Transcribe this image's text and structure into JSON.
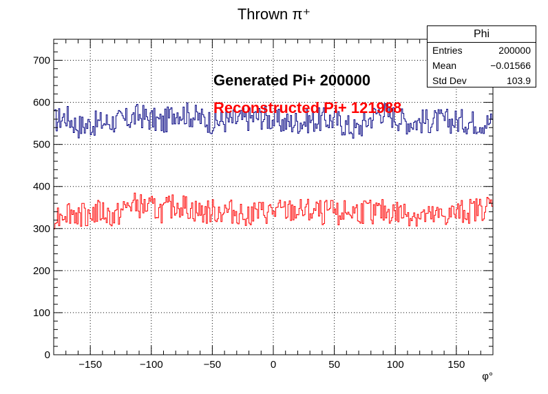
{
  "chart_data": {
    "type": "line",
    "title": "Thrown π⁺",
    "xlabel": "φ°",
    "ylabel": "",
    "xlim": [
      -180,
      180
    ],
    "ylim": [
      0,
      750
    ],
    "x_ticks": [
      -150,
      -100,
      -50,
      0,
      50,
      100,
      150
    ],
    "x_tick_labels": [
      "−150",
      "−100",
      "−50",
      "0",
      "50",
      "100",
      "150"
    ],
    "y_ticks": [
      0,
      100,
      200,
      300,
      400,
      500,
      600,
      700
    ],
    "y_tick_labels": [
      "0",
      "100",
      "200",
      "300",
      "400",
      "500",
      "600",
      "700"
    ],
    "grid": true,
    "bins": 360,
    "series": [
      {
        "color": "#000080",
        "mean": 556,
        "values_sample": [
          {
            "x": -178,
            "y": 560
          },
          {
            "x": -170,
            "y": 590
          },
          {
            "x": -160,
            "y": 520
          },
          {
            "x": -140,
            "y": 545
          },
          {
            "x": -120,
            "y": 560
          },
          {
            "x": -110,
            "y": 595
          },
          {
            "x": -90,
            "y": 540
          },
          {
            "x": -80,
            "y": 625
          },
          {
            "x": -70,
            "y": 600
          },
          {
            "x": -50,
            "y": 550
          },
          {
            "x": -30,
            "y": 560
          },
          {
            "x": -10,
            "y": 585
          },
          {
            "x": 10,
            "y": 540
          },
          {
            "x": 30,
            "y": 560
          },
          {
            "x": 50,
            "y": 565
          },
          {
            "x": 68,
            "y": 495
          },
          {
            "x": 87,
            "y": 625
          },
          {
            "x": 110,
            "y": 550
          },
          {
            "x": 130,
            "y": 555
          },
          {
            "x": 150,
            "y": 555
          },
          {
            "x": 178,
            "y": 545
          }
        ]
      },
      {
        "color": "#ff0000",
        "mean": 339,
        "values_sample": [
          {
            "x": -178,
            "y": 310
          },
          {
            "x": -170,
            "y": 350
          },
          {
            "x": -160,
            "y": 325
          },
          {
            "x": -140,
            "y": 340
          },
          {
            "x": -130,
            "y": 300
          },
          {
            "x": -117,
            "y": 393
          },
          {
            "x": -90,
            "y": 345
          },
          {
            "x": -78,
            "y": 392
          },
          {
            "x": -60,
            "y": 335
          },
          {
            "x": -40,
            "y": 345
          },
          {
            "x": -20,
            "y": 330
          },
          {
            "x": 0,
            "y": 340
          },
          {
            "x": 20,
            "y": 345
          },
          {
            "x": 50,
            "y": 335
          },
          {
            "x": 80,
            "y": 345
          },
          {
            "x": 110,
            "y": 330
          },
          {
            "x": 130,
            "y": 300
          },
          {
            "x": 150,
            "y": 330
          },
          {
            "x": 170,
            "y": 360
          },
          {
            "x": 178,
            "y": 380
          }
        ]
      }
    ],
    "annotations": [
      {
        "text": "Generated Pi+ 200000",
        "color": "#000000"
      },
      {
        "text": "Reconstructed Pi+ 121988",
        "color": "#ff0000"
      }
    ],
    "legend_position": "top-right",
    "stats": {
      "name": "Phi",
      "entries_label": "Entries",
      "entries": "200000",
      "mean_label": "Mean",
      "mean": "−0.01566",
      "stddev_label": "Std Dev",
      "stddev": "103.9"
    }
  }
}
